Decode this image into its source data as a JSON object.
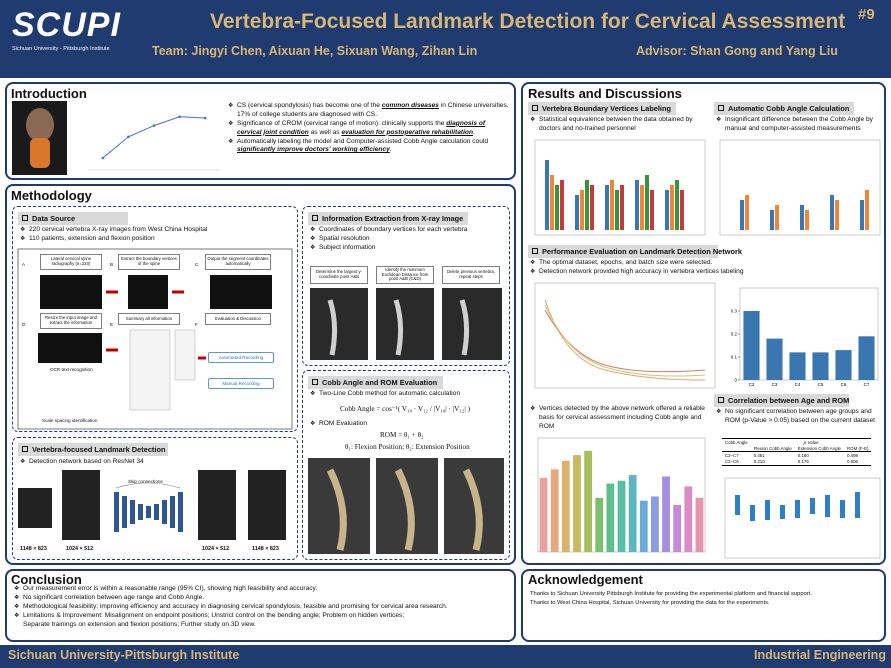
{
  "header": {
    "logo": "SCUPI",
    "logo_sub": "Sichuan University - Pittsburgh Institute",
    "title": "Vertebra-Focused Landmark Detection for Cervical Assessment",
    "number": "#9",
    "team": "Team: Jingyi Chen, Aixuan He, Sixuan Wang, Zihan Lin",
    "advisor": "Advisor: Shan Gong and Yang Liu"
  },
  "introduction": {
    "heading": "Introduction",
    "bullets": [
      [
        {
          "text": "CS (cervical spondylosis) has become one of the "
        },
        {
          "text": "common diseases",
          "em": true
        },
        {
          "text": " in Chinese universities. 17% of college students are diagnosed with CS."
        }
      ],
      [
        {
          "text": "Significance of CROM (cervical range of motion): clinically supports the "
        },
        {
          "text": "diagnosis of cervical joint condition",
          "em": true
        },
        {
          "text": " as well as "
        },
        {
          "text": "evaluation for postoperative rehabilitation",
          "em": true
        },
        {
          "text": "."
        }
      ],
      [
        {
          "text": "Automatically labeling the model and Computer-assisted Cobb Angle calculation could "
        },
        {
          "text": "significantly improve doctors' working efficiency",
          "em": true
        },
        {
          "text": "."
        }
      ]
    ],
    "chart": {
      "type": "line",
      "values": [
        10.5,
        15.8,
        18.6,
        20.8,
        20.5
      ],
      "ylim": [
        8,
        23
      ],
      "color": "#4472c4"
    }
  },
  "methodology": {
    "heading": "Methodology",
    "data_source": {
      "heading": "Data Source",
      "bullets": [
        "220 cervical vertebra X-ray images from West China Hospital",
        "110 patients, extension and flexion position"
      ],
      "steps": [
        "Lateral cervical spine radiography (n=220)",
        "Extract the boundary vertices of the spine",
        "Output the segment coordinates automatically",
        "Resize the input image and extract the information",
        "Summary all information",
        "Evaluation & Discussion"
      ],
      "panels": [
        "A",
        "B",
        "C",
        "D",
        "E",
        "F"
      ],
      "ocr": "OCR text recognition",
      "scale": "Scale spacing identification",
      "automated": "Automated Recording",
      "manual": "Manual Recording"
    },
    "extraction": {
      "heading": "Information Extraction from X-ray Image",
      "bullets": [
        "Coordinates of boundary vertices for each vertebra",
        "Spatial resolution",
        "Subject information"
      ],
      "steps": [
        "Determine the largest y-coordinate point A&B",
        "Identify the minimum Euclidean Distance from point A&B (C&D)",
        "Delete previous vertebra, repeat steps"
      ]
    },
    "detection": {
      "heading": "Vertebra-focused Landmark Detection",
      "bullets": [
        "Detection network based on ResNet 34"
      ],
      "sizes": [
        "1148 × 823",
        "1024 × 512",
        "1024 × 512",
        "1148 × 823"
      ],
      "skip": "Skip connections"
    },
    "cobb": {
      "heading": "Cobb Angle and ROM Evaluation",
      "bullets": [
        "Two-Line Cobb method for automatic calculation"
      ],
      "formula": "Cobb Angle = cos⁻¹( V₁₀ · V₁₂ / |V₁₀| · |V₁₂| )",
      "bullets2": [
        "ROM Evaluation"
      ],
      "rom": "ROM = θ₁ + θ₂",
      "legend": "θ₁: Flexion Position; θ₂: Extension Position"
    }
  },
  "results": {
    "heading": "Results and Discussions",
    "labeling": {
      "heading": "Vertebra Boundary Vertices Labeling",
      "bullets": [
        "Statistical equivalence between the data obtained by doctors and no-trained personnel"
      ]
    },
    "cobb_calc": {
      "heading": "Automatic Cobb Angle Calculation",
      "bullets": [
        "Insignificant difference between the Cobb Angle by manual and computer-assisted measurements"
      ]
    },
    "performance": {
      "heading": "Performance Evaluation on Landmark Detection Network",
      "bullets": [
        "The optimal dataset, epochs, and batch size were selected.",
        "Detection network provided high accuracy in vertebra vertices labeling"
      ],
      "chart": {
        "type": "bar",
        "categories": [
          "C2",
          "C3",
          "C4",
          "C5",
          "C6",
          "C7"
        ],
        "values": [
          0.3,
          0.18,
          0.12,
          0.12,
          0.13,
          0.19
        ],
        "ylim": [
          0,
          0.4
        ],
        "yticks": [
          0,
          0.1,
          0.2,
          0.3
        ],
        "color": "#3a76af"
      }
    },
    "basis": {
      "bullets": [
        "Vertices detected by the above network offered a reliable basis for cervical assessment including Cobb angle and ROM"
      ],
      "chart": {
        "type": "bar",
        "values": [
          5.2,
          5.8,
          6.4,
          6.8,
          7.1,
          3.8,
          4.8,
          5.0,
          5.4,
          3.6,
          3.9,
          5.3,
          3.3,
          4.6,
          3.8
        ],
        "ylim": [
          0,
          8
        ],
        "colors": [
          "#e8a0a0",
          "#e6a87c",
          "#d9b36a",
          "#c9b95f",
          "#a9bf5f",
          "#7dbf6c",
          "#5fbf8a",
          "#58bfa6",
          "#5ab7bf",
          "#6aaad6",
          "#8b9be0",
          "#a58fe0",
          "#c48ad8",
          "#dc8cc4",
          "#e595ac"
        ]
      }
    },
    "correlation": {
      "heading": "Correlation between Age and ROM",
      "bullets": [
        "No significant correlation between age groups and ROM (p-Value > 0.05) based on the current dataset"
      ],
      "table": {
        "header": [
          "Cobb Angle",
          "p-Value"
        ],
        "columns": [
          "Flexion Cobb Angle",
          "Extension Cobb Angle",
          "ROM (F-E)"
        ],
        "rows": [
          [
            "C2–C7",
            "0.461",
            "0.180",
            "0.498"
          ],
          [
            "C2–C6",
            "0.210",
            "0.176",
            "0.506"
          ]
        ]
      }
    }
  },
  "conclusion": {
    "heading": "Conclusion",
    "bullets": [
      "Our measurement error is within a reasonable range (95% CI), showing high feasibility and accuracy.",
      "No significant correlation between age range and Cobb Angle.",
      "Methodological feasibility: improving efficiency and accuracy in diagnosing cervical spondylosis, feasible and promising for cervical area research.",
      "Limitations & Improvement: Misalignment on endpoint positions; Unstrict control on the bending angle; Problem on hidden vertices;"
    ],
    "continuation": "Separate trainings on extension and flexion positions; Further study on 3D view."
  },
  "acknowledgement": {
    "heading": "Acknowledgement",
    "lines": [
      "Thanks to Sichuan University Pittsburgh Institute for providing the experimental platform and financial support.",
      "Thanks to West China Hospital, Sichuan University for providing the data for the experiments."
    ]
  },
  "footer": {
    "left": "Sichuan University-Pittsburgh Institute",
    "right": "Industrial Engineering"
  }
}
